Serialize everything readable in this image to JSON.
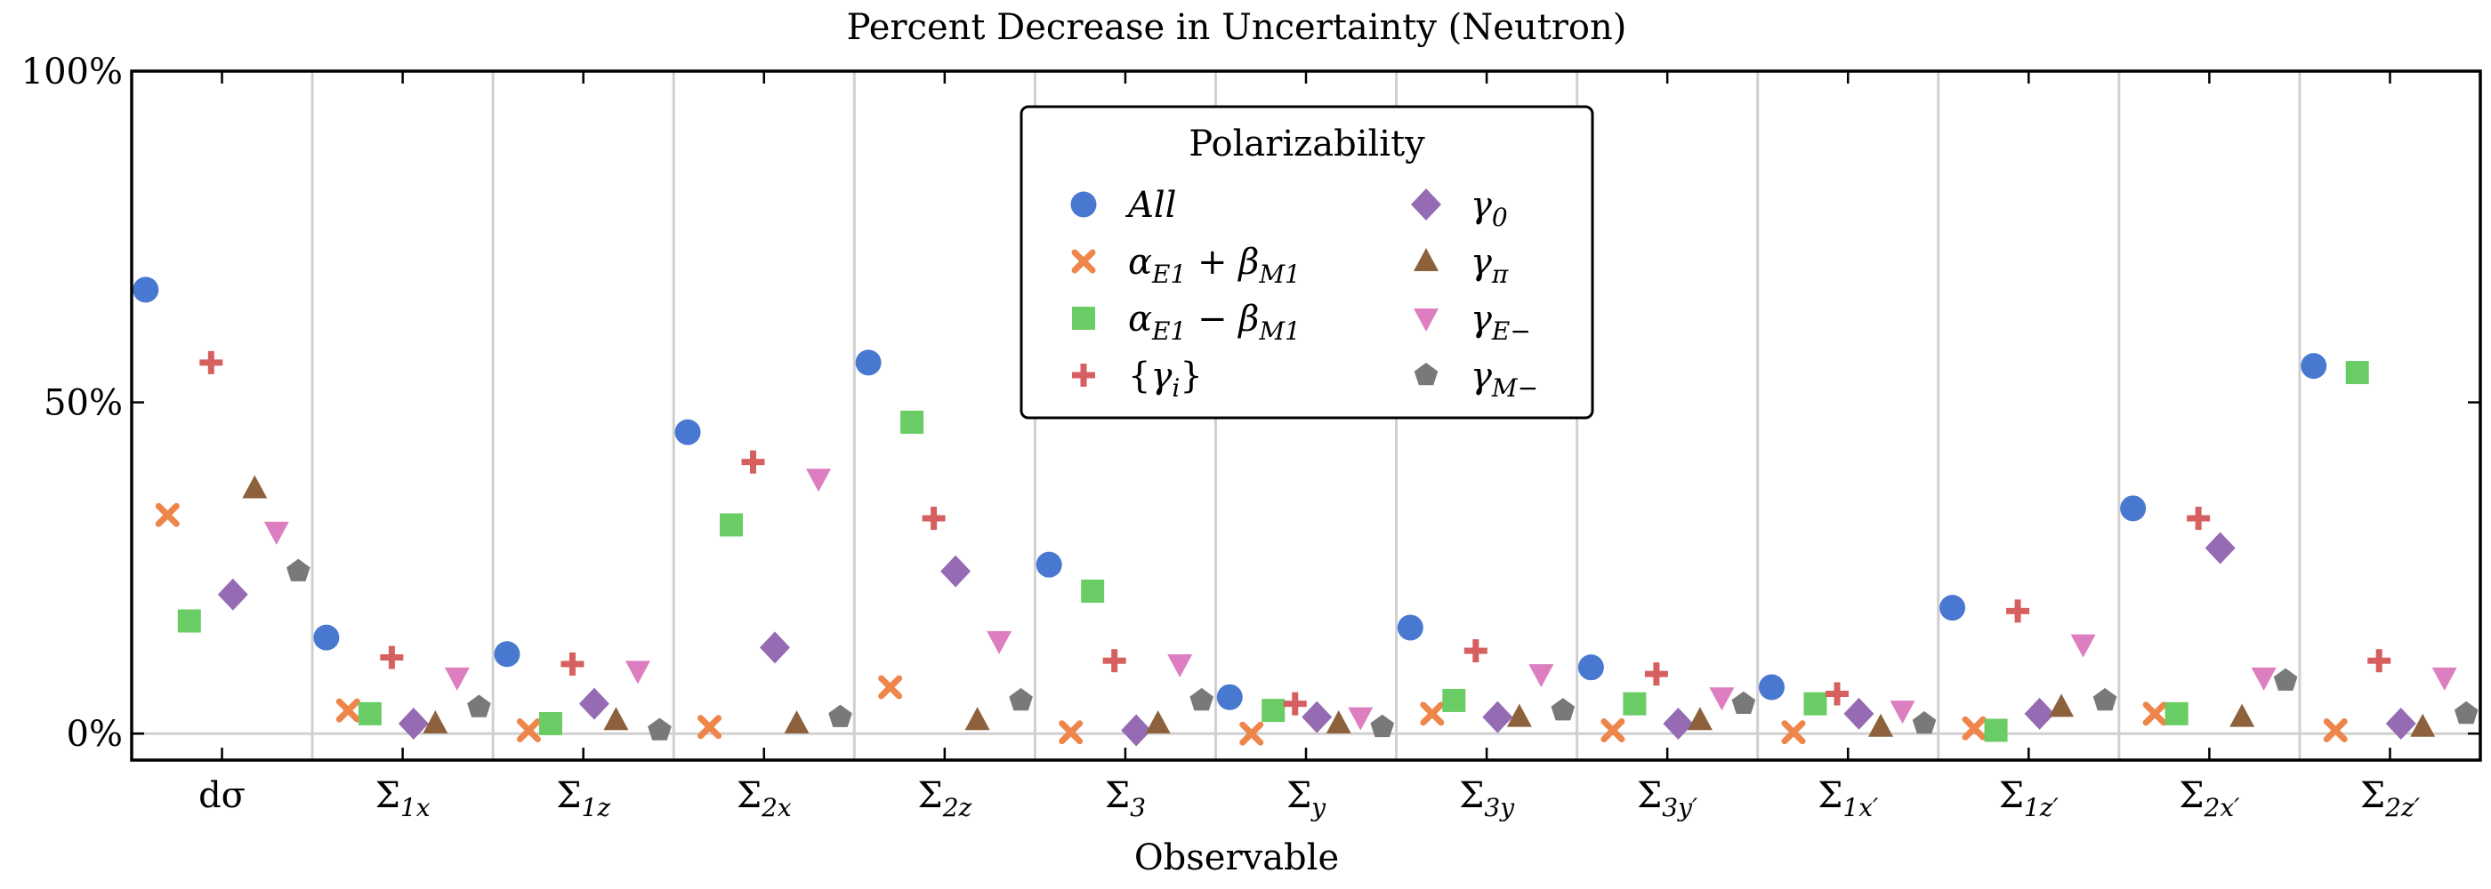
{
  "chart_data": {
    "type": "scatter",
    "title": "Percent Decrease in Uncertainty (Neutron)",
    "xlabel": "Observable",
    "ylabel": "",
    "ylim": [
      -4,
      100
    ],
    "yticks": [
      {
        "value": 0,
        "label": "0%"
      },
      {
        "value": 50,
        "label": "50%"
      },
      {
        "value": 100,
        "label": "100%"
      }
    ],
    "grid": "vertical separators between observables",
    "legend": {
      "title": "Polarizability",
      "placement": "top-center",
      "columns": 2
    },
    "categories": [
      {
        "base": "dσ",
        "sub": ""
      },
      {
        "base": "Σ",
        "sub": "1x"
      },
      {
        "base": "Σ",
        "sub": "1z"
      },
      {
        "base": "Σ",
        "sub": "2x"
      },
      {
        "base": "Σ",
        "sub": "2z"
      },
      {
        "base": "Σ",
        "sub": "3"
      },
      {
        "base": "Σ",
        "sub": "y"
      },
      {
        "base": "Σ",
        "sub": "3y"
      },
      {
        "base": "Σ",
        "sub": "3y′"
      },
      {
        "base": "Σ",
        "sub": "1x′"
      },
      {
        "base": "Σ",
        "sub": "1z′"
      },
      {
        "base": "Σ",
        "sub": "2x′"
      },
      {
        "base": "Σ",
        "sub": "2z′"
      }
    ],
    "series": [
      {
        "name": "All",
        "label_parts": [
          [
            "i",
            "All"
          ]
        ],
        "marker": "circle",
        "color": "#4878d0",
        "values": [
          67,
          14.5,
          12,
          45.5,
          56,
          25.5,
          5.5,
          16,
          10,
          7,
          19,
          34,
          55.5
        ]
      },
      {
        "name": "α_E1 + β_M1",
        "label_parts": [
          [
            "i",
            "α"
          ],
          [
            "s",
            "E1"
          ],
          [
            "t",
            " + "
          ],
          [
            "i",
            "β"
          ],
          [
            "s",
            "M1"
          ]
        ],
        "marker": "x",
        "color": "#ee854a",
        "values": [
          33,
          3.5,
          0.5,
          1,
          7,
          0.2,
          0,
          3,
          0.5,
          0.2,
          0.8,
          3,
          0.5
        ]
      },
      {
        "name": "α_E1 − β_M1",
        "label_parts": [
          [
            "i",
            "α"
          ],
          [
            "s",
            "E1"
          ],
          [
            "t",
            " − "
          ],
          [
            "i",
            "β"
          ],
          [
            "s",
            "M1"
          ]
        ],
        "marker": "square",
        "color": "#6acc64",
        "values": [
          17,
          3,
          1.5,
          31.5,
          47,
          21.5,
          3.5,
          5,
          4.5,
          4.5,
          0.5,
          3,
          54.5
        ]
      },
      {
        "name": "{γ_i}",
        "label_parts": [
          [
            "t",
            "{"
          ],
          [
            "i",
            "γ"
          ],
          [
            "s",
            "i"
          ],
          [
            "t",
            "}"
          ]
        ],
        "marker": "plus",
        "color": "#d65f5f",
        "values": [
          56,
          11.5,
          10.5,
          41,
          32.5,
          11,
          4.5,
          12.5,
          9,
          6,
          18.5,
          32.5,
          11
        ]
      },
      {
        "name": "γ_0",
        "label_parts": [
          [
            "i",
            "γ"
          ],
          [
            "s",
            "0"
          ]
        ],
        "marker": "diamond",
        "color": "#956cb4",
        "values": [
          21,
          1.5,
          4.5,
          13,
          24.5,
          0.5,
          2.5,
          2.5,
          1.5,
          3,
          3,
          28,
          1.5
        ]
      },
      {
        "name": "γ_π",
        "label_parts": [
          [
            "i",
            "γ"
          ],
          [
            "s",
            "π"
          ]
        ],
        "marker": "triangle-up",
        "color": "#8c613c",
        "values": [
          37,
          1.5,
          2,
          1.5,
          2,
          1.5,
          1.5,
          2.5,
          2,
          1,
          4,
          2.5,
          1
        ]
      },
      {
        "name": "γ_E−",
        "label_parts": [
          [
            "i",
            "γ"
          ],
          [
            "s",
            "E−"
          ]
        ],
        "marker": "triangle-down",
        "color": "#dc7ec0",
        "values": [
          30.5,
          8.5,
          9.5,
          38.5,
          14,
          10.5,
          2.5,
          9,
          5.5,
          3.5,
          13.5,
          8.5,
          8.5
        ]
      },
      {
        "name": "γ_M−",
        "label_parts": [
          [
            "i",
            "γ"
          ],
          [
            "s",
            "M−"
          ]
        ],
        "marker": "pentagon",
        "color": "#797979",
        "values": [
          24.5,
          4,
          0.5,
          2.5,
          5,
          5,
          1,
          3.5,
          4.5,
          1.5,
          5,
          8,
          3
        ]
      }
    ]
  }
}
